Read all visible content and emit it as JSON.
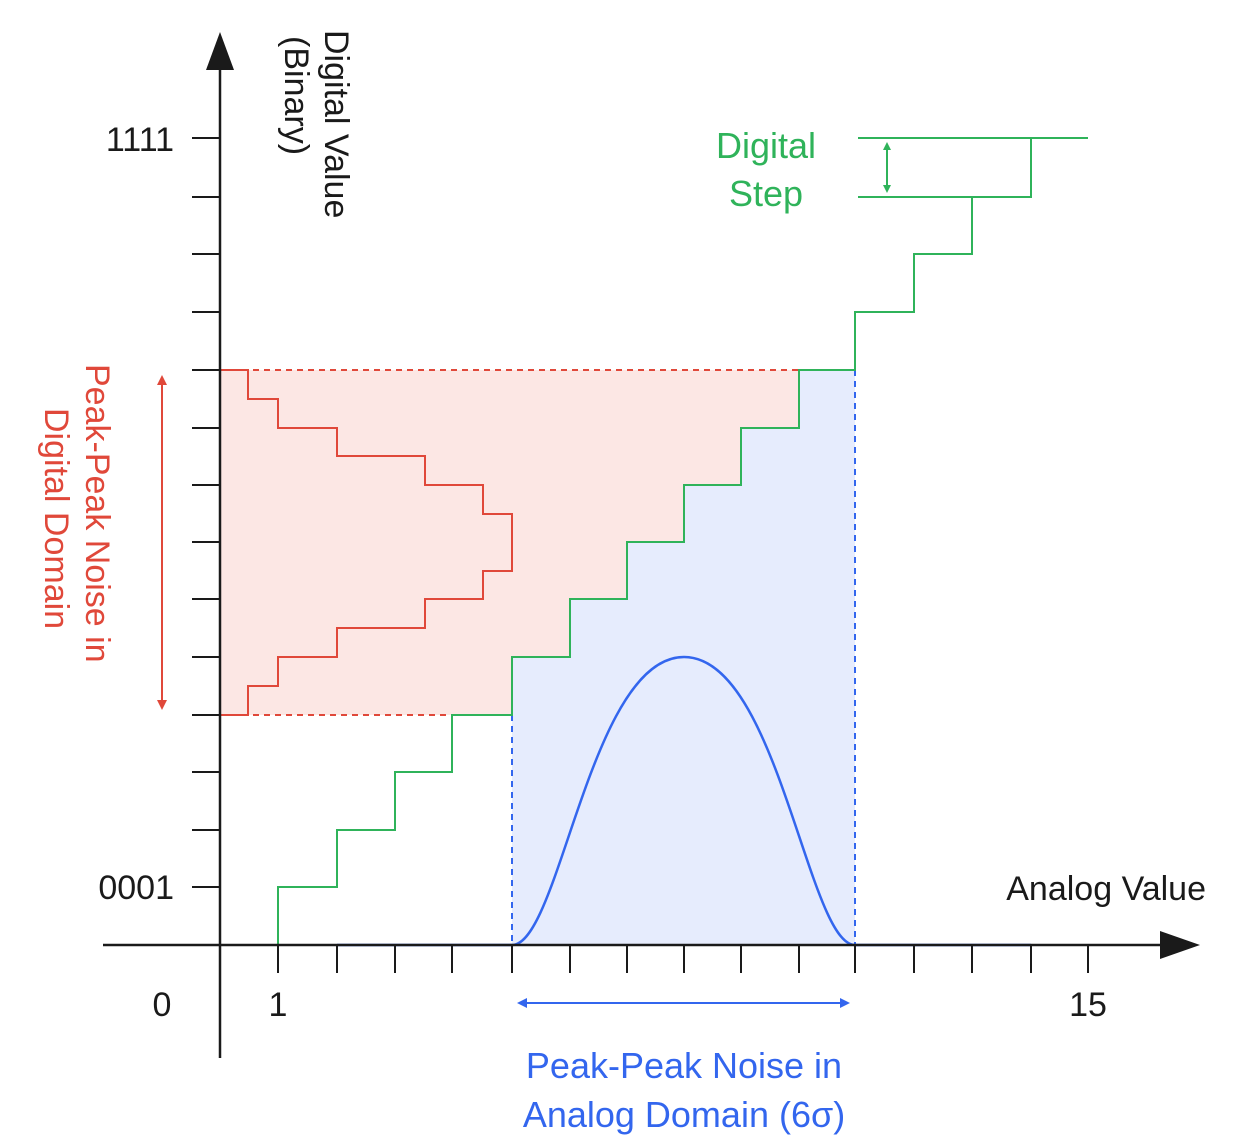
{
  "colors": {
    "axis": "#1a1a1a",
    "staircase": "#2fb35a",
    "noise_digital": "#e0483a",
    "noise_digital_fill": "#fce7e4",
    "noise_analog": "#3366ee",
    "noise_analog_fill": "#e6ecfd",
    "text_dark": "#1a1a1a"
  },
  "y_axis": {
    "label_line1": "Digital Value",
    "label_line2": "(Binary)",
    "tick_top": "1111",
    "tick_bottom": "0001"
  },
  "x_axis": {
    "label": "Analog Value",
    "tick_0": "0",
    "tick_1": "1",
    "tick_15": "15"
  },
  "digital_step": {
    "line1": "Digital",
    "line2": "Step"
  },
  "digital_noise": {
    "line1": "Peak-Peak Noise in",
    "line2": "Digital Domain"
  },
  "analog_noise": {
    "line1": "Peak-Peak Noise in",
    "line2": "Analog Domain (6σ)"
  },
  "icons": {
    "y_arrow": "arrow-up-icon",
    "x_arrow": "arrow-right-icon"
  }
}
